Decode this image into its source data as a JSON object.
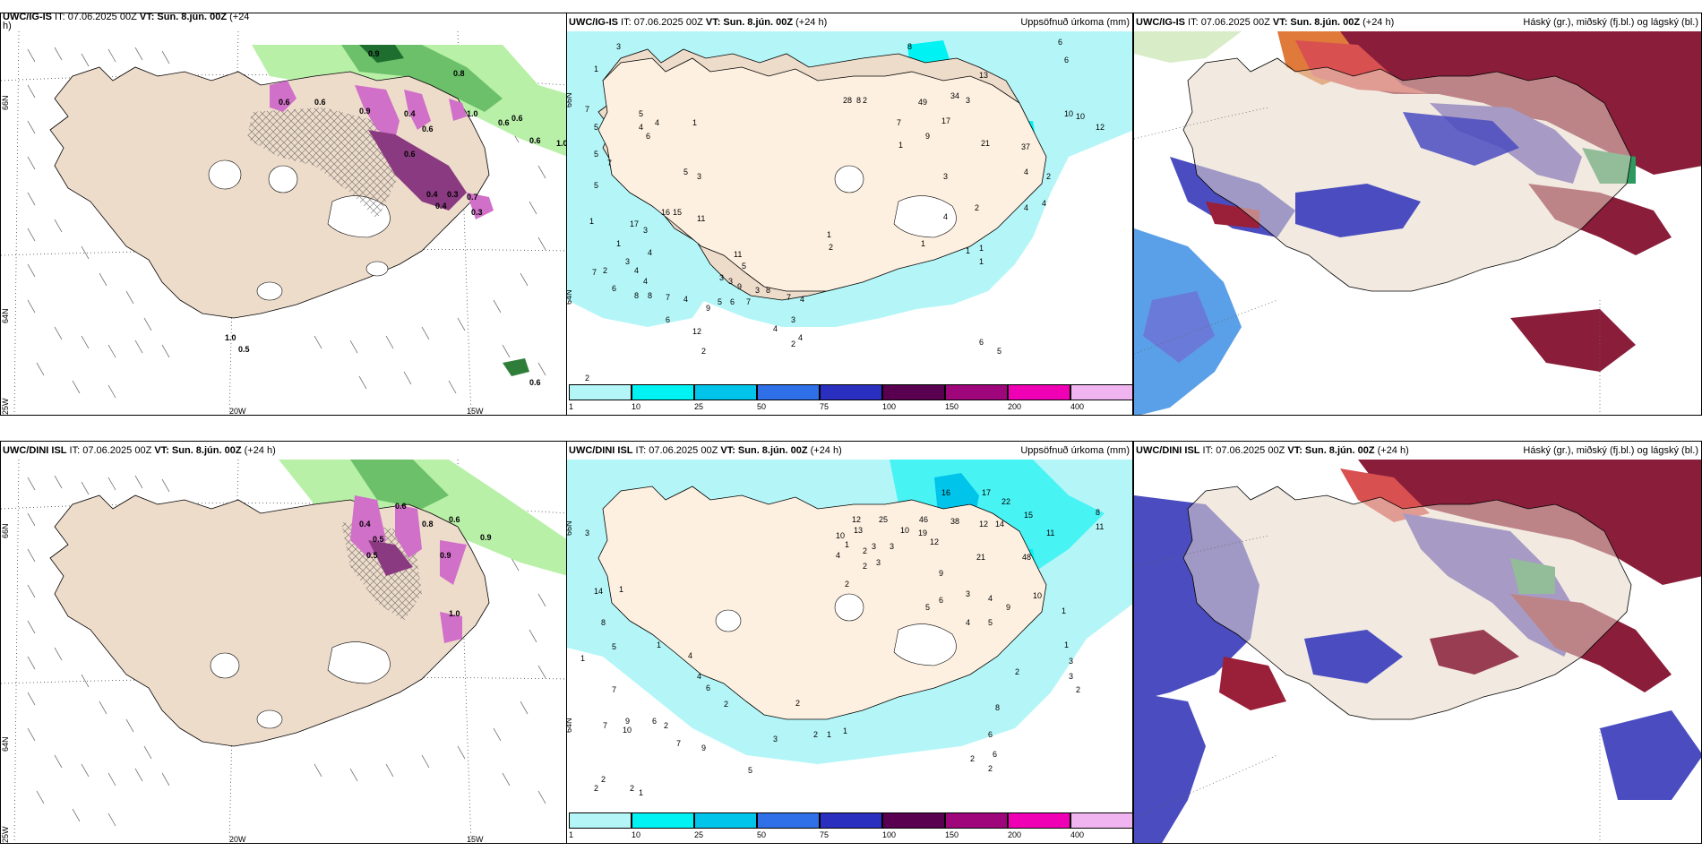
{
  "headers": {
    "p1": {
      "model": "UWC/IG-IS",
      "it": " IT: 07.06.2025 00Z ",
      "vt": "VT: Sun. 8.jún. 00Z",
      "lead": " (+24",
      "lead2": "h)"
    },
    "p2": {
      "model": "UWC/IG-IS",
      "it": " IT: 07.06.2025 00Z ",
      "vt": "VT: Sun. 8.jún. 00Z",
      "lead": " (+24 h)",
      "right": "Uppsöfnuð úrkoma (mm)"
    },
    "p3": {
      "model": "UWC/IG-IS",
      "it": " IT: 07.06.2025 00Z ",
      "vt": "VT: Sun. 8.jún. 00Z",
      "lead": " (+24 h)",
      "right": "Háský (gr.), miðský (fj.bl.) og lágský (bl.)"
    },
    "p4": {
      "model": "UWC/DINI ISL",
      "it": " IT: 07.06.2025 00Z ",
      "vt": "VT: Sun. 8.jún. 00Z",
      "lead": " (+24 h)"
    },
    "p5": {
      "model": "UWC/DINI ISL",
      "it": " IT: 07.06.2025 00Z ",
      "vt": "VT: Sun. 8.jún. 00Z",
      "lead": " (+24 h)",
      "right": "Uppsöfnuð úrkoma (mm)"
    },
    "p6": {
      "model": "UWC/DINI ISL",
      "it": " IT: 07.06.2025 00Z ",
      "vt": "VT: Sun. 8.jún. 00Z",
      "lead": " (+24 h)",
      "right": "Háský (gr.), miðský (fj.bl.) og lágský (bl.)"
    }
  },
  "axis": {
    "lat_66": "66N",
    "lat_64": "64N",
    "lon_25": "25W",
    "lon_20": "20W",
    "lon_15": "15W"
  },
  "legend": {
    "ticks": [
      "1",
      "10",
      "25",
      "50",
      "75",
      "100",
      "150",
      "200",
      "400"
    ],
    "colors": [
      "#b4f6f8",
      "#00f2f2",
      "#00c4ea",
      "#2f6fe8",
      "#2b2fc0",
      "#5a0050",
      "#a0067c",
      "#f000b4",
      "#f0b4f0"
    ]
  },
  "top_precip_values": [
    "3",
    "1",
    "8",
    "6",
    "6",
    "7",
    "5",
    "5",
    "4",
    "6",
    "4",
    "1",
    "5",
    "7",
    "5",
    "5",
    "3",
    "1",
    "16",
    "15",
    "11",
    "17",
    "3",
    "4",
    "2",
    "1",
    "11",
    "3",
    "7",
    "4",
    "4",
    "6",
    "3",
    "3",
    "5",
    "9",
    "8",
    "8",
    "7",
    "4",
    "5",
    "6",
    "7",
    "3",
    "8",
    "7",
    "4",
    "9",
    "3",
    "7",
    "6",
    "6",
    "9",
    "12",
    "4",
    "2",
    "28",
    "8",
    "49",
    "7",
    "1",
    "2",
    "34",
    "17",
    "9",
    "13",
    "3",
    "21",
    "37",
    "4",
    "4",
    "2",
    "10",
    "10",
    "12",
    "2",
    "1",
    "1",
    "1",
    "1",
    "2",
    "3",
    "4",
    "4",
    "6",
    "5",
    "2"
  ],
  "top_precip_extra": [
    "8",
    "8",
    "9",
    "13",
    "9",
    "3",
    "5",
    "3",
    "3",
    "4",
    "3",
    "4",
    "1",
    "4"
  ],
  "bot_precip_values": [
    "3",
    "14",
    "1",
    "8",
    "1",
    "5",
    "7",
    "9",
    "10",
    "6",
    "1",
    "4",
    "4",
    "6",
    "2",
    "2",
    "7",
    "9",
    "2",
    "2",
    "2",
    "1",
    "12",
    "13",
    "10",
    "25",
    "10",
    "46",
    "16",
    "38",
    "12",
    "14",
    "17",
    "22",
    "15",
    "11",
    "8",
    "11",
    "4",
    "1",
    "1",
    "2",
    "3",
    "2",
    "3",
    "2",
    "3",
    "19",
    "12",
    "9",
    "6",
    "5",
    "3",
    "4",
    "9",
    "10",
    "4",
    "5",
    "21",
    "48",
    "1",
    "1",
    "3",
    "3",
    "3",
    "2",
    "8",
    "6",
    "6",
    "2",
    "2",
    "2",
    "3",
    "2",
    "1",
    "5",
    "1"
  ],
  "top_cloud_vals": [
    "0.9",
    "0.8",
    "0.6",
    "0.6",
    "0.9",
    "0.4",
    "0.6",
    "0.6",
    "0.6",
    "0.6",
    "0.6",
    "0.4",
    "0.3",
    "0.4",
    "0.3",
    "0.7",
    "1.0",
    "0.5",
    "0.6",
    "1.0",
    "1.0"
  ],
  "bot_cloud_vals": [
    "0.4",
    "0.5",
    "0.6",
    "0.6",
    "0.5",
    "0.9",
    "0.8",
    "0.9",
    "1.0"
  ]
}
